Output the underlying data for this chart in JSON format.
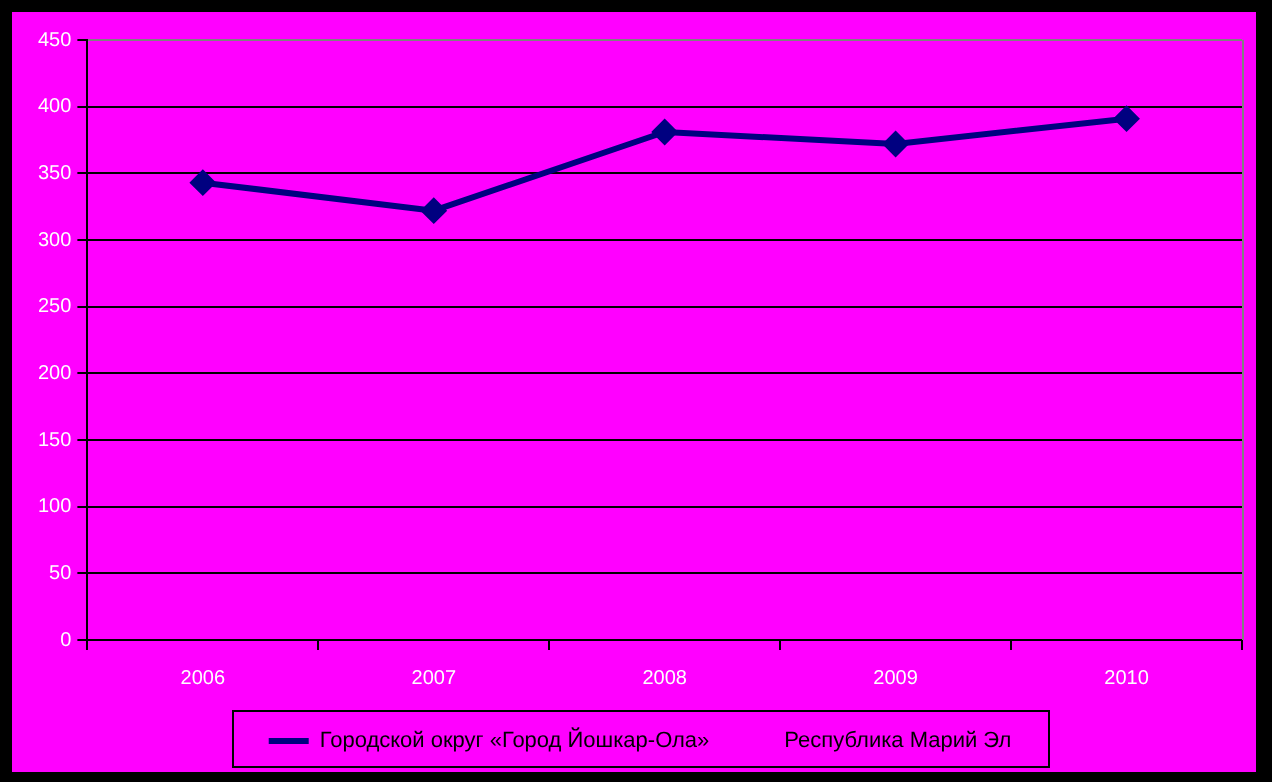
{
  "chart_data": {
    "type": "line",
    "categories": [
      "2006",
      "2007",
      "2008",
      "2009",
      "2010"
    ],
    "series": [
      {
        "name": "Городской округ «Город Йошкар-Ола»",
        "color": "#000080",
        "values": [
          343,
          322,
          381,
          372,
          391
        ]
      },
      {
        "name": "Республика Марий Эл",
        "values": [
          null,
          null,
          null,
          null,
          null
        ]
      }
    ],
    "ylim": [
      0,
      450
    ],
    "yticks": [
      0,
      50,
      100,
      150,
      200,
      250,
      300,
      350,
      400,
      450
    ],
    "grid": "y",
    "legend": "bottom",
    "marker": "diamond",
    "line_style": "solid"
  }
}
